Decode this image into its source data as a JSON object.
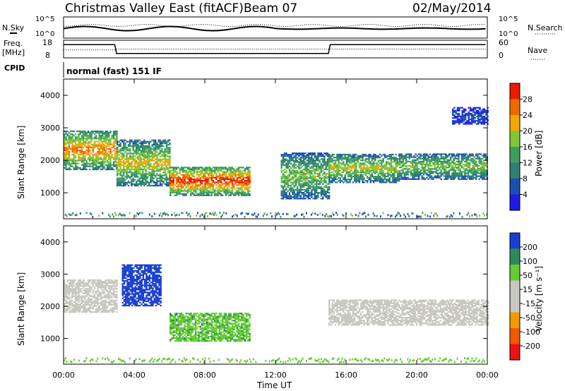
{
  "header": {
    "title": "Christmas Valley East (fitACF)",
    "beam": "Beam 07",
    "date": "02/May/2014"
  },
  "small_panels": {
    "nsky": {
      "label": "N.Sky",
      "ticks": [
        "10^5",
        "10^0"
      ]
    },
    "nsearch": {
      "label": "N.Search",
      "ticks": [
        "10^5",
        "10^0"
      ]
    },
    "freq": {
      "label_1": "Freq.",
      "label_2": "[MHz]",
      "ticks": [
        "18",
        "8"
      ]
    },
    "nave": {
      "label": "Nave",
      "ticks": [
        "60",
        "0"
      ]
    },
    "cpid": {
      "label": "CPID",
      "value": "normal (fast) 151 IF"
    }
  },
  "colors": {
    "power": [
      "#1c1ce6",
      "#1c4fb5",
      "#2f7f74",
      "#3f9e5f",
      "#7fc63a",
      "#f2a800",
      "#f06a00",
      "#e81a00"
    ],
    "velocity": [
      "#ee1111",
      "#f25a00",
      "#f39a00",
      "#c8c8c0",
      "#c8c8c0",
      "#66cc33",
      "#2e8b57",
      "#1a3fcf"
    ]
  },
  "chart_data": [
    {
      "type": "heatmap",
      "name": "power-panel",
      "ylabel": "Slant Range [km]",
      "yticks": [
        "1000",
        "2000",
        "3000",
        "4000"
      ],
      "ylim": [
        200,
        4500
      ],
      "xlim": [
        0,
        24
      ],
      "colorbar": {
        "label": "Power [dB]",
        "ticks": [
          "4",
          "8",
          "12",
          "16",
          "20",
          "24",
          "28"
        ],
        "range": [
          0,
          32
        ]
      },
      "regions": [
        {
          "t": [
            0,
            3
          ],
          "r": [
            1700,
            2900
          ],
          "level": 26
        },
        {
          "t": [
            3,
            6
          ],
          "r": [
            1200,
            2600
          ],
          "level": 22
        },
        {
          "t": [
            6,
            10.5
          ],
          "r": [
            900,
            1800
          ],
          "level": 30
        },
        {
          "t": [
            12.3,
            15
          ],
          "r": [
            800,
            2200
          ],
          "level": 18
        },
        {
          "t": [
            15,
            19
          ],
          "r": [
            1300,
            2200
          ],
          "level": 20
        },
        {
          "t": [
            19,
            24
          ],
          "r": [
            1400,
            2200
          ],
          "level": 18
        },
        {
          "t": [
            22,
            24
          ],
          "r": [
            3100,
            3600
          ],
          "level": 6
        }
      ]
    },
    {
      "type": "heatmap",
      "name": "velocity-panel",
      "ylabel": "Slant Range [km]",
      "yticks": [
        "1000",
        "2000",
        "3000",
        "4000"
      ],
      "ylim": [
        200,
        4500
      ],
      "xlim": [
        0,
        24
      ],
      "xlabel": "Time UT",
      "xticks": [
        "00:00",
        "04:00",
        "08:00",
        "12:00",
        "16:00",
        "20:00",
        "00:00"
      ],
      "colorbar": {
        "label": "Velocity [m s⁻¹]",
        "ticks": [
          "-200",
          "-100",
          "-50",
          "-15",
          "15",
          "50",
          "100",
          "200"
        ],
        "range": [
          -250,
          250
        ]
      },
      "regions": [
        {
          "t": [
            0,
            3
          ],
          "r": [
            1800,
            2800
          ],
          "velocity": 0
        },
        {
          "t": [
            3.3,
            5.5
          ],
          "r": [
            2000,
            3300
          ],
          "velocity": 180
        },
        {
          "t": [
            6,
            10.5
          ],
          "r": [
            900,
            1800
          ],
          "velocity": 40
        },
        {
          "t": [
            15,
            24
          ],
          "r": [
            1400,
            2200
          ],
          "velocity": 0
        }
      ]
    }
  ]
}
